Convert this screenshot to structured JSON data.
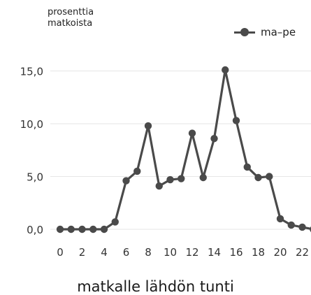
{
  "chart_data": {
    "type": "line",
    "y_axis_title": "prosenttia\nmatkoista",
    "xlabel": "matkalle lähdön tunti",
    "legend_position": "top-right",
    "grid": "horizontal",
    "xlim": [
      0,
      23
    ],
    "ylim": [
      0,
      15.0
    ],
    "x_ticks": [
      0,
      2,
      4,
      6,
      8,
      10,
      12,
      14,
      16,
      18,
      20,
      22
    ],
    "x_tick_labels": [
      "0",
      "2",
      "4",
      "6",
      "8",
      "10",
      "12",
      "14",
      "16",
      "18",
      "20",
      "22"
    ],
    "y_ticks": [
      0,
      5,
      10,
      15
    ],
    "y_tick_labels": [
      "0,0",
      "5,0",
      "10,0",
      "15,0"
    ],
    "x": [
      0,
      1,
      2,
      3,
      4,
      5,
      6,
      7,
      8,
      9,
      10,
      11,
      12,
      13,
      14,
      15,
      16,
      17,
      18,
      19,
      20,
      21,
      22,
      23
    ],
    "series": [
      {
        "name": "ma–pe",
        "color": "#4a4a4a",
        "values": [
          0.0,
          0.0,
          0.0,
          0.0,
          0.0,
          0.7,
          4.6,
          5.5,
          9.8,
          4.1,
          4.7,
          4.8,
          9.1,
          4.9,
          8.6,
          15.1,
          10.3,
          5.9,
          4.9,
          5.0,
          1.0,
          0.4,
          0.2,
          0.0
        ]
      }
    ]
  }
}
